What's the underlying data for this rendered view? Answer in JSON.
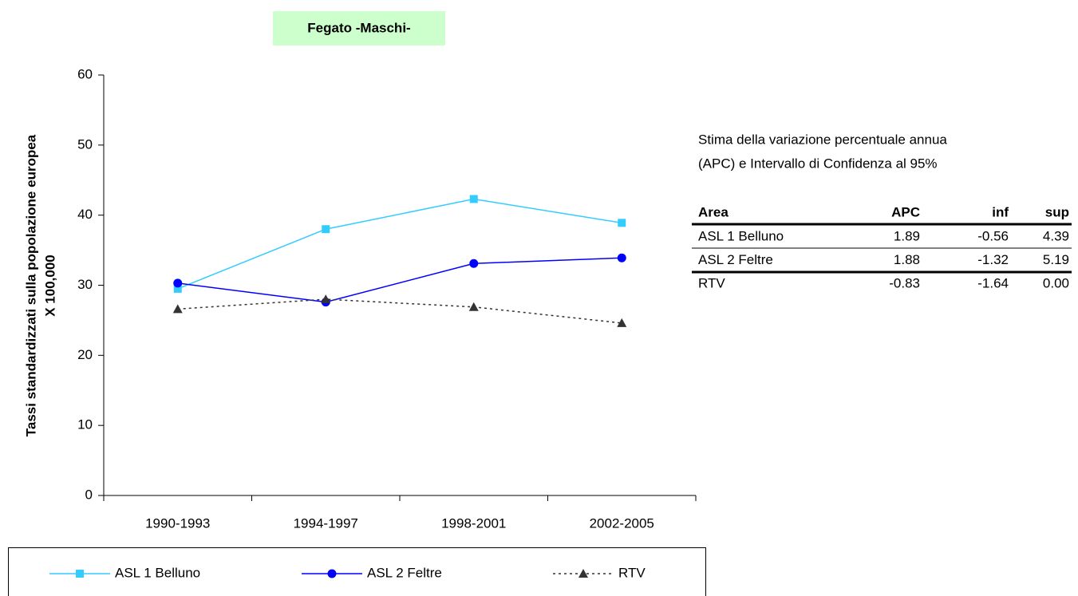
{
  "chart_data": {
    "type": "line",
    "title": "Fegato -Maschi-",
    "ylabel": [
      "Tassi standardizzati sulla popolazione europea",
      "X 100,000"
    ],
    "categories": [
      "1990-1993",
      "1994-1997",
      "1998-2001",
      "2002-2005"
    ],
    "series": [
      {
        "name": "ASL 1 Belluno",
        "color": "#33ccff",
        "marker": "square",
        "dash": "solid",
        "values": [
          29.5,
          38.0,
          42.3,
          38.9
        ]
      },
      {
        "name": "ASL 2 Feltre",
        "color": "#0000ff",
        "marker": "circle",
        "dash": "solid",
        "values": [
          30.3,
          27.6,
          33.1,
          33.9
        ]
      },
      {
        "name": "RTV",
        "color": "#333333",
        "marker": "triangle",
        "dash": "dotted",
        "values": [
          26.6,
          28.0,
          26.9,
          24.6
        ]
      }
    ],
    "ylim": [
      0,
      60
    ],
    "yticks": [
      0,
      10,
      20,
      30,
      40,
      50,
      60
    ],
    "grid": false,
    "legend": "bottom"
  },
  "table": {
    "caption": [
      "Stima della variazione percentuale annua",
      "(APC) e Intervallo di Confidenza al 95%"
    ],
    "header": [
      "Area",
      "APC",
      "inf",
      "sup"
    ],
    "rows": [
      [
        "ASL 1 Belluno",
        "1.89",
        "-0.56",
        "4.39"
      ],
      [
        "ASL 2 Feltre",
        "1.88",
        "-1.32",
        "5.19"
      ],
      [
        "RTV",
        "-0.83",
        "-1.64",
        "0.00"
      ]
    ]
  }
}
